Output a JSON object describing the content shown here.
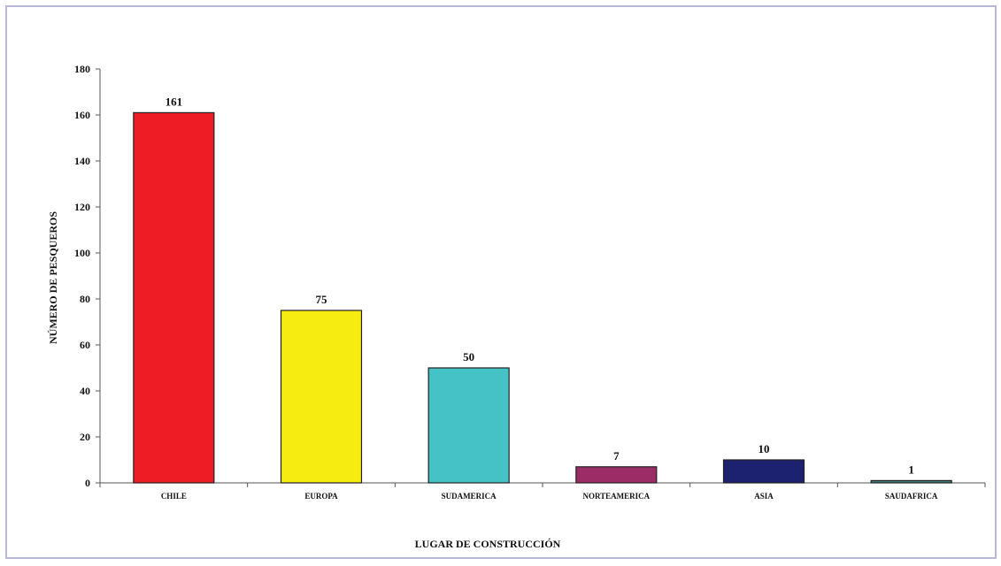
{
  "chart_data": {
    "type": "bar",
    "title": "",
    "xlabel": "LUGAR DE CONSTRUCCIÓN",
    "ylabel": "NÚMERO DE PESQUEROS",
    "categories": [
      "CHILE",
      "EUROPA",
      "SUDAMERICA",
      "NORTEAMERICA",
      "ASIA",
      "SAUDAFRICA"
    ],
    "values": [
      161,
      75,
      50,
      7,
      10,
      1
    ],
    "colors": [
      "#ee1c24",
      "#f7ec12",
      "#45c2c5",
      "#9b2c66",
      "#1d2270",
      "#3c7b7a"
    ],
    "ylim": [
      0,
      180
    ],
    "yticks": [
      0,
      20,
      40,
      60,
      80,
      100,
      120,
      140,
      160,
      180
    ],
    "grid": false,
    "legend": "none",
    "data_labels": true
  }
}
